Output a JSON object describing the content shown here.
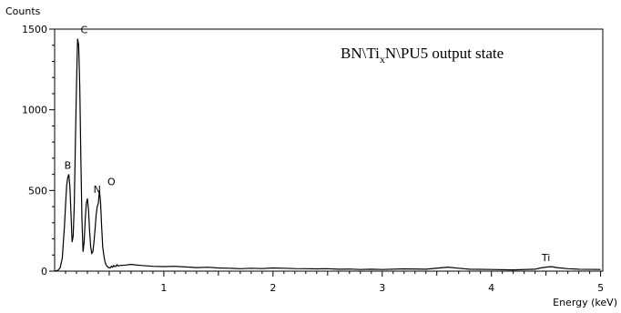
{
  "chart_data": {
    "type": "line",
    "title_main": "BN\\Ti",
    "title_sub": "x",
    "title_rest": "N\\PU5 output state",
    "ylabel": "Counts",
    "xlabel": "Energy (keV)",
    "xlim": [
      0.0,
      5.02
    ],
    "ylim": [
      0,
      1500
    ],
    "xticks": [
      1,
      2,
      3,
      4,
      5
    ],
    "yticks": [
      0,
      500,
      1000,
      1500
    ],
    "grid": false,
    "series": [
      {
        "x": [
          0.0,
          0.03,
          0.05,
          0.07,
          0.08,
          0.09,
          0.1,
          0.11,
          0.12,
          0.13,
          0.14,
          0.15,
          0.16,
          0.17,
          0.18,
          0.19,
          0.2,
          0.21,
          0.22,
          0.23,
          0.24,
          0.25,
          0.26,
          0.27,
          0.28,
          0.29,
          0.3,
          0.31,
          0.32,
          0.33,
          0.34,
          0.35,
          0.36,
          0.37,
          0.38,
          0.39,
          0.4,
          0.41,
          0.42,
          0.43,
          0.44,
          0.45,
          0.46,
          0.47,
          0.48,
          0.49,
          0.5,
          0.51,
          0.52,
          0.53,
          0.54,
          0.55,
          0.56,
          0.57,
          0.58,
          0.6,
          0.65,
          0.7,
          0.8,
          0.9,
          1.0,
          1.1,
          1.2,
          1.3,
          1.4,
          1.5,
          1.6,
          1.7,
          1.8,
          1.9,
          2.0,
          2.1,
          2.2,
          2.3,
          2.4,
          2.5,
          2.6,
          2.7,
          2.8,
          2.9,
          3.0,
          3.2,
          3.4,
          3.6,
          3.7,
          3.8,
          4.0,
          4.2,
          4.4,
          4.45,
          4.5,
          4.55,
          4.6,
          4.7,
          4.8,
          5.0
        ],
        "y": [
          0,
          5,
          20,
          80,
          180,
          280,
          410,
          530,
          580,
          600,
          520,
          350,
          180,
          220,
          420,
          800,
          1150,
          1440,
          1400,
          1150,
          700,
          320,
          120,
          180,
          320,
          420,
          450,
          380,
          250,
          150,
          110,
          120,
          180,
          260,
          350,
          400,
          420,
          500,
          430,
          280,
          150,
          100,
          60,
          40,
          30,
          25,
          20,
          22,
          30,
          25,
          35,
          28,
          30,
          40,
          32,
          35,
          38,
          42,
          35,
          30,
          28,
          30,
          26,
          22,
          24,
          20,
          18,
          15,
          18,
          16,
          20,
          18,
          16,
          15,
          14,
          15,
          12,
          13,
          10,
          12,
          10,
          14,
          12,
          25,
          18,
          12,
          10,
          8,
          12,
          20,
          25,
          28,
          22,
          15,
          12,
          10
        ],
        "values_note": ""
      }
    ],
    "annotations": [
      {
        "label": "B",
        "x": 0.12,
        "y": 600
      },
      {
        "label": "C",
        "x": 0.27,
        "y": 1440
      },
      {
        "label": "N",
        "x": 0.39,
        "y": 450
      },
      {
        "label": "O",
        "x": 0.52,
        "y": 500
      },
      {
        "label": "Ti",
        "x": 4.5,
        "y": 28
      }
    ]
  }
}
